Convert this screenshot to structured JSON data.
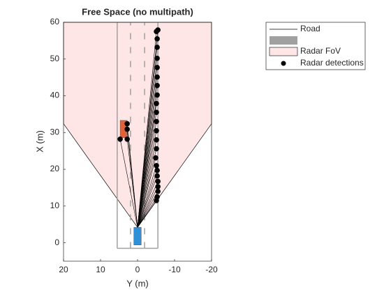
{
  "chart_data": {
    "type": "birds-eye",
    "title": "Free Space (no multipath)",
    "x_label": "Y (m)",
    "y_label": "X (m)",
    "xlim": [
      20,
      -20
    ],
    "xticks": [
      20,
      10,
      0,
      -10,
      -20
    ],
    "ylim": [
      -5,
      60
    ],
    "yticks": [
      0,
      10,
      20,
      30,
      40,
      50,
      60
    ],
    "fov": {
      "name": "Radar FoV",
      "color": "#ffe6e6",
      "x": [
        0,
        20,
        20,
        -20,
        -20
      ],
      "y": [
        4.2,
        32.4,
        60,
        60,
        32.4
      ]
    },
    "road": {
      "name": "Road",
      "color": "#a0a0a0",
      "edges": [
        5.5,
        -5.5
      ],
      "lanes": [
        1.9,
        -1.9
      ],
      "start": -1.5,
      "end": 60
    },
    "ego": {
      "color": "#2f8fd8",
      "x": [
        1,
        -1
      ],
      "y": [
        -0.6,
        4.2
      ]
    },
    "target": {
      "color": "#e0623a",
      "x": [
        4.7,
        2.8
      ],
      "y": [
        28.6,
        33.3
      ]
    },
    "series": [
      {
        "name": "Radar detections",
        "color": "#000000",
        "x": [
          -5.5,
          -5.1,
          -5.3,
          -5.3,
          -5.3,
          -5.3,
          -5.3,
          -5.3,
          -5.3,
          -5.1,
          -5.1,
          -5.1,
          -5.1,
          -5.1,
          -5.1,
          -4.9,
          -5.1,
          -5.3,
          -5.3,
          -5.5,
          -5.5,
          -5.5,
          -5.3,
          -5.1,
          2.8,
          2.8,
          4.7,
          2.8
        ],
        "values": [
          57.9,
          57.5,
          55.5,
          53.2,
          50.2,
          47.7,
          45.1,
          42.8,
          40.2,
          37.9,
          35.5,
          33.0,
          30.5,
          28.0,
          25.6,
          23.1,
          21.0,
          19.7,
          18.2,
          16.7,
          15.3,
          14.0,
          12.5,
          11.5,
          32.4,
          30.9,
          28.2,
          28.2
        ]
      }
    ]
  }
}
